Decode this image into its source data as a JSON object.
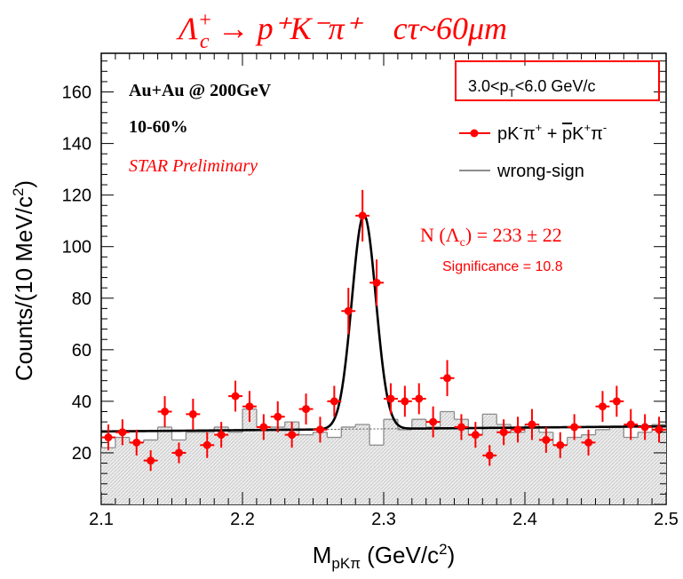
{
  "header": {
    "reaction": "Λc+ → p+K−π+",
    "reaction_parts": {
      "lam": "Λ",
      "sup": "+",
      "sub": "c",
      "rest": " → p⁺K⁻π⁺"
    },
    "ctau": "cτ~60μm"
  },
  "labels": {
    "collision": "Au+Au @ 200GeV",
    "centrality": "10-60%",
    "preliminary": "STAR Preliminary",
    "pt_range_parts": {
      "a": "3.0<p",
      "sub": "T",
      "b": "<6.0 GeV/c"
    },
    "legend_signal_parts": {
      "p1": "pK",
      "s1": "-",
      "p2": "π",
      "s2": "+",
      "p3": " + ",
      "pbar": "p",
      "p4": "K",
      "s3": "+",
      "p5": "π",
      "s4": "-"
    },
    "legend_wrongsign": "wrong-sign",
    "yield": "N (Λc) = 233 ± 22",
    "yield_parts": {
      "a": "N (Λ",
      "sub": "c",
      "b": ") = 233 ± 22"
    },
    "significance": "Significance = 10.8",
    "xlabel_parts": {
      "a": "M",
      "sub": "pKπ",
      "b": " (GeV/c",
      "sup": "2",
      "c": ")"
    },
    "ylabel_parts": {
      "a": "Counts/(10 MeV/c",
      "sup": "2",
      "b": ")"
    }
  },
  "colors": {
    "signal": "#ff0000",
    "fit": "#000000",
    "wrongsign": "#8c8c8c",
    "wrongsign_fill": "#dedede",
    "box": "#ff0000"
  },
  "chart_data": {
    "type": "scatter",
    "x_range": [
      2.1,
      2.5
    ],
    "y_range": [
      0,
      175
    ],
    "x_ticks": [
      "2.1",
      "2.2",
      "2.3",
      "2.4",
      "2.5"
    ],
    "x_tick_values": [
      2.1,
      2.2,
      2.3,
      2.4,
      2.5
    ],
    "y_ticks": [
      "20",
      "40",
      "60",
      "80",
      "100",
      "120",
      "140",
      "160"
    ],
    "y_tick_values": [
      20,
      40,
      60,
      80,
      100,
      120,
      140,
      160
    ],
    "bin_width": 0.01,
    "signal": {
      "x": [
        2.105,
        2.115,
        2.125,
        2.135,
        2.145,
        2.155,
        2.165,
        2.175,
        2.185,
        2.195,
        2.205,
        2.215,
        2.225,
        2.235,
        2.245,
        2.255,
        2.265,
        2.275,
        2.285,
        2.295,
        2.305,
        2.315,
        2.325,
        2.335,
        2.345,
        2.355,
        2.365,
        2.375,
        2.385,
        2.395,
        2.405,
        2.415,
        2.425,
        2.435,
        2.445,
        2.455,
        2.465,
        2.475,
        2.485,
        2.495
      ],
      "y": [
        26,
        28,
        24,
        17,
        36,
        20,
        35,
        23,
        27,
        42,
        38,
        30,
        34,
        27,
        37,
        29,
        40,
        75,
        112,
        86,
        41,
        40,
        41,
        32,
        49,
        30,
        27,
        19,
        28,
        29,
        31,
        25,
        23,
        30,
        24,
        38,
        40,
        31,
        30,
        29
      ],
      "err": [
        5,
        5,
        5,
        4,
        6,
        4,
        6,
        5,
        5,
        6,
        6,
        5,
        6,
        5,
        6,
        5,
        6,
        9,
        10,
        9,
        6,
        6,
        6,
        6,
        7,
        5,
        5,
        4,
        5,
        5,
        6,
        5,
        5,
        5,
        5,
        6,
        6,
        6,
        5,
        5
      ]
    },
    "wrong_sign": {
      "x": [
        2.105,
        2.115,
        2.125,
        2.135,
        2.145,
        2.155,
        2.165,
        2.175,
        2.185,
        2.195,
        2.205,
        2.215,
        2.225,
        2.235,
        2.245,
        2.255,
        2.265,
        2.275,
        2.285,
        2.295,
        2.305,
        2.315,
        2.325,
        2.335,
        2.345,
        2.355,
        2.365,
        2.375,
        2.385,
        2.395,
        2.405,
        2.415,
        2.425,
        2.435,
        2.445,
        2.455,
        2.465,
        2.475,
        2.485,
        2.495
      ],
      "y": [
        22,
        26,
        24,
        25,
        30,
        25,
        28,
        28,
        30,
        28,
        37,
        30,
        30,
        32,
        27,
        28,
        26,
        30,
        31,
        23,
        33,
        29,
        33,
        30,
        36,
        33,
        27,
        35,
        31,
        28,
        31,
        28,
        23,
        26,
        27,
        29,
        30,
        26,
        28,
        31
      ]
    },
    "fit_params": {
      "constant": 28.3,
      "slope": 5.0,
      "amplitude": 83,
      "mean": 2.286,
      "sigma": 0.0085
    },
    "background_params": {
      "constant": 28.3,
      "slope": 5.0
    }
  }
}
